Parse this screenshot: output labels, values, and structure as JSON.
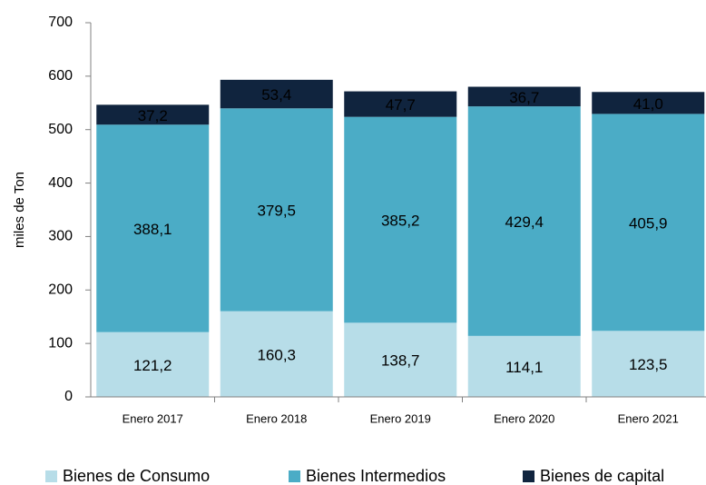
{
  "chart_data": {
    "type": "stacked_bar",
    "y_label": "miles de Ton",
    "categories": [
      "Enero 2017",
      "Enero 2018",
      "Enero 2019",
      "Enero 2020",
      "Enero 2021"
    ],
    "series": [
      {
        "name": "Bienes de Consumo",
        "color": "#b7dde8",
        "values": [
          121.2,
          160.3,
          138.7,
          114.1,
          123.5
        ],
        "value_labels": [
          "121,2",
          "160,3",
          "138,7",
          "114,1",
          "123,5"
        ]
      },
      {
        "name": "Bienes Intermedios",
        "color": "#4bacc6",
        "values": [
          388.1,
          379.5,
          385.2,
          429.4,
          405.9
        ],
        "value_labels": [
          "388,1",
          "379,5",
          "385,2",
          "429,4",
          "405,9"
        ]
      },
      {
        "name": "Bienes de capital",
        "color": "#10243e",
        "values": [
          37.2,
          53.4,
          47.7,
          36.7,
          41.0
        ],
        "value_labels": [
          "37,2",
          "53,4",
          "47,7",
          "36,7",
          "41,0"
        ]
      }
    ],
    "ylim": [
      0,
      700
    ],
    "yticks": [
      0,
      100,
      200,
      300,
      400,
      500,
      600,
      700
    ]
  }
}
